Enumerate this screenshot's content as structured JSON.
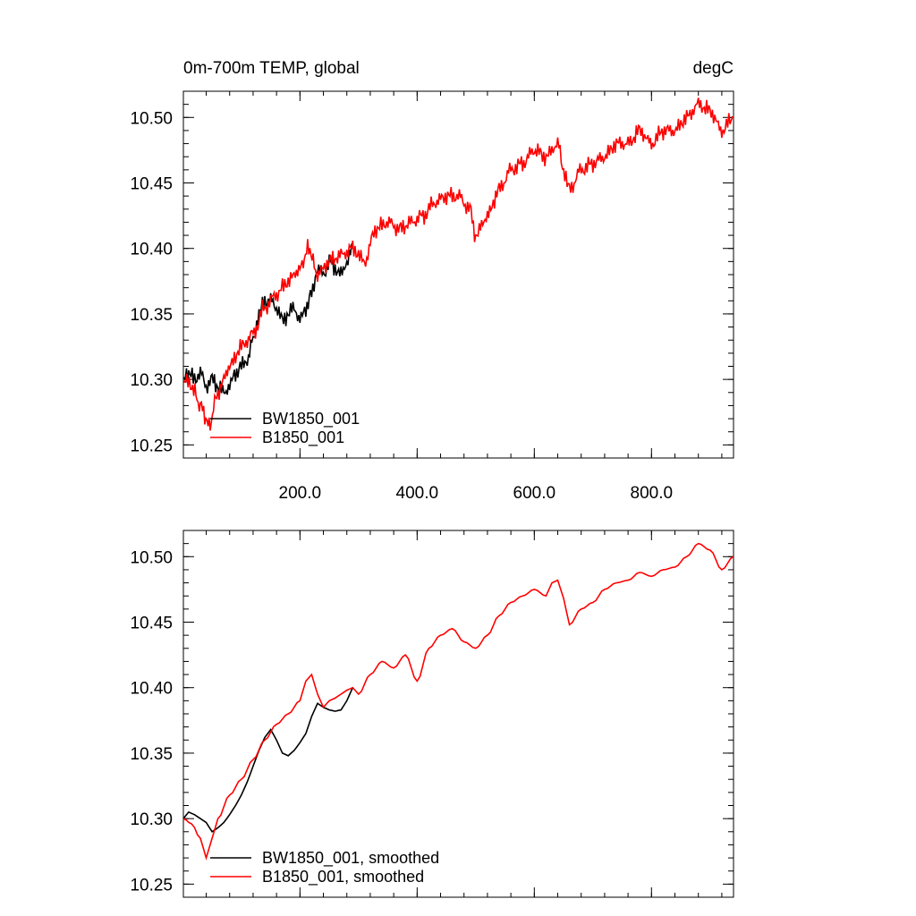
{
  "chart_data": [
    {
      "type": "line",
      "title": "0m-700m TEMP, global",
      "units": "degC",
      "xlim": [
        1,
        940
      ],
      "ylim": [
        10.24,
        10.52
      ],
      "xticks": [
        {
          "value": 200,
          "label": "200.0"
        },
        {
          "value": 400,
          "label": "400.0"
        },
        {
          "value": 600,
          "label": "600.0"
        },
        {
          "value": 800,
          "label": "800.0"
        }
      ],
      "yticks": [
        {
          "value": 10.25,
          "label": "10.25"
        },
        {
          "value": 10.3,
          "label": "10.30"
        },
        {
          "value": 10.35,
          "label": "10.35"
        },
        {
          "value": 10.4,
          "label": "10.40"
        },
        {
          "value": 10.45,
          "label": "10.45"
        },
        {
          "value": 10.5,
          "label": "10.50"
        }
      ],
      "legend_position": "bottom-left",
      "series": [
        {
          "name": "BW1850_001",
          "color": "#000000",
          "x": [
            1,
            10,
            20,
            30,
            40,
            50,
            60,
            70,
            80,
            90,
            100,
            110,
            120,
            130,
            140,
            150,
            160,
            170,
            180,
            190,
            200,
            210,
            220,
            230,
            240,
            250,
            260,
            270,
            280,
            290
          ],
          "y": [
            10.3,
            10.305,
            10.3,
            10.305,
            10.295,
            10.3,
            10.295,
            10.29,
            10.295,
            10.305,
            10.31,
            10.315,
            10.33,
            10.35,
            10.36,
            10.36,
            10.355,
            10.345,
            10.35,
            10.355,
            10.345,
            10.355,
            10.365,
            10.385,
            10.38,
            10.39,
            10.385,
            10.38,
            10.39,
            10.4
          ]
        },
        {
          "name": "B1850_001",
          "color": "#ff0000",
          "x": [
            1,
            15,
            30,
            45,
            60,
            80,
            100,
            120,
            140,
            160,
            180,
            200,
            215,
            230,
            250,
            270,
            290,
            310,
            330,
            350,
            370,
            390,
            410,
            430,
            450,
            470,
            490,
            500,
            520,
            540,
            560,
            580,
            600,
            620,
            640,
            650,
            660,
            680,
            700,
            720,
            740,
            760,
            780,
            800,
            820,
            840,
            860,
            880,
            900,
            920,
            940
          ],
          "y": [
            10.3,
            10.295,
            10.28,
            10.265,
            10.29,
            10.31,
            10.325,
            10.335,
            10.355,
            10.365,
            10.375,
            10.385,
            10.4,
            10.38,
            10.39,
            10.395,
            10.4,
            10.39,
            10.415,
            10.42,
            10.415,
            10.42,
            10.425,
            10.435,
            10.44,
            10.44,
            10.43,
            10.41,
            10.425,
            10.445,
            10.46,
            10.465,
            10.475,
            10.47,
            10.48,
            10.46,
            10.445,
            10.46,
            10.465,
            10.47,
            10.48,
            10.48,
            10.49,
            10.48,
            10.49,
            10.49,
            10.5,
            10.51,
            10.505,
            10.49,
            10.5
          ]
        }
      ]
    },
    {
      "type": "line",
      "title": "",
      "units": "",
      "xlim": [
        1,
        940
      ],
      "ylim": [
        10.24,
        10.52
      ],
      "xticks": [
        {
          "value": 200,
          "label": ""
        },
        {
          "value": 400,
          "label": ""
        },
        {
          "value": 600,
          "label": ""
        },
        {
          "value": 800,
          "label": ""
        }
      ],
      "yticks": [
        {
          "value": 10.25,
          "label": "10.25"
        },
        {
          "value": 10.3,
          "label": "10.30"
        },
        {
          "value": 10.35,
          "label": "10.35"
        },
        {
          "value": 10.4,
          "label": "10.40"
        },
        {
          "value": 10.45,
          "label": "10.45"
        },
        {
          "value": 10.5,
          "label": "10.50"
        }
      ],
      "legend_position": "bottom-left",
      "series": [
        {
          "name": "BW1850_001, smoothed",
          "color": "#000000",
          "x": [
            1,
            10,
            20,
            30,
            40,
            50,
            60,
            70,
            80,
            90,
            100,
            110,
            120,
            130,
            140,
            150,
            160,
            170,
            180,
            190,
            200,
            210,
            220,
            230,
            240,
            250,
            260,
            270,
            280,
            290
          ],
          "y": [
            10.3,
            10.305,
            10.303,
            10.3,
            10.297,
            10.29,
            10.293,
            10.297,
            10.303,
            10.31,
            10.318,
            10.328,
            10.34,
            10.352,
            10.362,
            10.368,
            10.36,
            10.35,
            10.348,
            10.352,
            10.358,
            10.365,
            10.378,
            10.388,
            10.385,
            10.383,
            10.382,
            10.383,
            10.39,
            10.4
          ]
        },
        {
          "name": "B1850_001, smoothed",
          "color": "#ff0000",
          "x": [
            1,
            15,
            30,
            40,
            50,
            60,
            80,
            100,
            120,
            140,
            160,
            180,
            200,
            210,
            220,
            230,
            240,
            250,
            260,
            270,
            280,
            290,
            300,
            320,
            340,
            360,
            380,
            400,
            420,
            440,
            460,
            480,
            500,
            520,
            540,
            560,
            580,
            600,
            620,
            630,
            640,
            650,
            660,
            680,
            700,
            720,
            740,
            760,
            780,
            800,
            820,
            840,
            860,
            880,
            900,
            920,
            940
          ],
          "y": [
            10.3,
            10.296,
            10.285,
            10.27,
            10.285,
            10.3,
            10.318,
            10.33,
            10.345,
            10.36,
            10.372,
            10.38,
            10.39,
            10.405,
            10.41,
            10.395,
            10.385,
            10.39,
            10.392,
            10.395,
            10.398,
            10.4,
            10.395,
            10.41,
            10.42,
            10.415,
            10.425,
            10.405,
            10.43,
            10.44,
            10.445,
            10.435,
            10.43,
            10.44,
            10.455,
            10.465,
            10.47,
            10.475,
            10.47,
            10.48,
            10.482,
            10.468,
            10.448,
            10.46,
            10.465,
            10.475,
            10.48,
            10.482,
            10.488,
            10.485,
            10.49,
            10.492,
            10.5,
            10.51,
            10.505,
            10.49,
            10.5
          ]
        }
      ]
    }
  ]
}
